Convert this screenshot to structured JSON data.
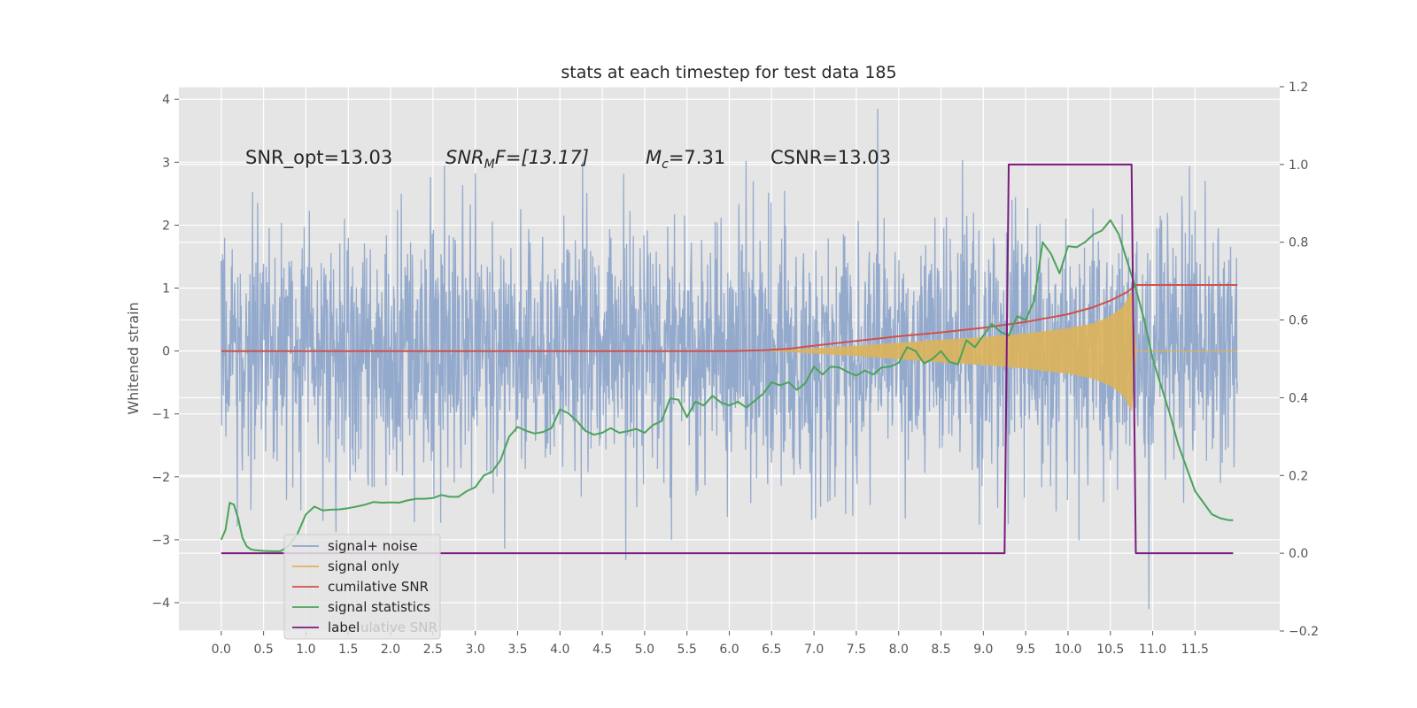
{
  "chart_data": {
    "type": "line",
    "title": "stats at each timestep for test data 185",
    "ylabel": "Whitened strain",
    "xlabel": "",
    "xlim": [
      -0.5,
      12.5
    ],
    "ylim": [
      -4.45,
      4.2
    ],
    "y2lim": [
      -0.2,
      1.2
    ],
    "grid": true,
    "legend_position": "lower-left",
    "x_ticks": [
      0.0,
      0.5,
      1.0,
      1.5,
      2.0,
      2.5,
      3.0,
      3.5,
      4.0,
      4.5,
      5.0,
      5.5,
      6.0,
      6.5,
      7.0,
      7.5,
      8.0,
      8.5,
      9.0,
      9.5,
      10.0,
      10.5,
      11.0,
      11.5
    ],
    "x_tick_labels": [
      "0.0",
      "0.5",
      "1.0",
      "1.5",
      "2.0",
      "2.5",
      "3.0",
      "3.5",
      "4.0",
      "4.5",
      "5.0",
      "5.5",
      "6.0",
      "6.5",
      "7.0",
      "7.5",
      "8.0",
      "8.5",
      "9.0",
      "9.5",
      "10.0",
      "10.5",
      "11.0",
      "11.5"
    ],
    "y_ticks": [
      -4,
      -3,
      -2,
      -1,
      0,
      1,
      2,
      3,
      4
    ],
    "y_tick_labels": [
      "−4",
      "−3",
      "−2",
      "−1",
      "0",
      "1",
      "2",
      "3",
      "4"
    ],
    "y2_ticks": [
      -0.2,
      0.0,
      0.2,
      0.4,
      0.6,
      0.8,
      1.0,
      1.2
    ],
    "y2_tick_labels": [
      "−0.2",
      "0.0",
      "0.2",
      "0.4",
      "0.6",
      "0.8",
      "1.0",
      "1.2"
    ],
    "annotations": {
      "snr_opt": "SNR_opt=13.03",
      "snr_mf_main": "SNR",
      "snr_mf_sub": "M",
      "snr_mf_rest": "F=[13.17]",
      "mc_main": "M",
      "mc_sub": "c",
      "mc_rest": "=7.31",
      "csnr": "CSNR=13.03"
    },
    "series": [
      {
        "name": "signal+ noise",
        "axis": "left",
        "color": "#8fa6cb",
        "kind": "noise",
        "x_range": [
          0.0,
          12.0
        ],
        "std": 1.0,
        "max": 3.85,
        "min": -4.1
      },
      {
        "name": "signal only",
        "axis": "left",
        "color": "#ddb25a",
        "kind": "chirp",
        "x_range": [
          6.5,
          10.8
        ],
        "envelope": {
          "x": [
            6.5,
            7.5,
            8.5,
            9.0,
            9.5,
            10.0,
            10.3,
            10.5,
            10.65,
            10.75,
            10.8
          ],
          "y": [
            0.0,
            0.08,
            0.18,
            0.22,
            0.28,
            0.36,
            0.44,
            0.55,
            0.7,
            0.95,
            0.0
          ]
        },
        "after_line": 0.0
      },
      {
        "name": "cumilative SNR",
        "axis": "right",
        "color": "#d0504b",
        "x": [
          0.0,
          6.0,
          6.4,
          6.7,
          7.0,
          7.5,
          8.0,
          8.5,
          9.0,
          9.5,
          10.0,
          10.3,
          10.5,
          10.7,
          10.8,
          12.0
        ],
        "values": [
          0.52,
          0.52,
          0.522,
          0.526,
          0.534,
          0.546,
          0.558,
          0.568,
          0.58,
          0.595,
          0.615,
          0.633,
          0.65,
          0.672,
          0.69,
          0.69
        ]
      },
      {
        "name": "signal statistics",
        "axis": "right",
        "color": "#4aa35a",
        "x": [
          0.0,
          0.05,
          0.1,
          0.15,
          0.2,
          0.25,
          0.3,
          0.35,
          0.4,
          0.5,
          0.6,
          0.7,
          0.8,
          0.9,
          1.0,
          1.05,
          1.1,
          1.15,
          1.2,
          1.3,
          1.4,
          1.5,
          1.6,
          1.7,
          1.8,
          1.9,
          2.0,
          2.1,
          2.2,
          2.3,
          2.4,
          2.5,
          2.6,
          2.7,
          2.8,
          2.9,
          3.0,
          3.1,
          3.2,
          3.3,
          3.4,
          3.5,
          3.6,
          3.7,
          3.8,
          3.9,
          4.0,
          4.1,
          4.2,
          4.3,
          4.4,
          4.5,
          4.6,
          4.7,
          4.8,
          4.9,
          5.0,
          5.1,
          5.2,
          5.3,
          5.4,
          5.5,
          5.6,
          5.7,
          5.8,
          5.9,
          6.0,
          6.1,
          6.2,
          6.3,
          6.4,
          6.5,
          6.6,
          6.7,
          6.8,
          6.9,
          7.0,
          7.1,
          7.2,
          7.3,
          7.4,
          7.5,
          7.6,
          7.7,
          7.8,
          7.9,
          8.0,
          8.1,
          8.2,
          8.3,
          8.4,
          8.5,
          8.6,
          8.7,
          8.8,
          8.9,
          9.0,
          9.1,
          9.2,
          9.3,
          9.4,
          9.5,
          9.6,
          9.7,
          9.8,
          9.9,
          10.0,
          10.1,
          10.2,
          10.3,
          10.4,
          10.5,
          10.6,
          10.7,
          10.8,
          10.9,
          11.0,
          11.1,
          11.2,
          11.3,
          11.4,
          11.5,
          11.6,
          11.7,
          11.8,
          11.9,
          11.95
        ],
        "values": [
          0.035,
          0.06,
          0.13,
          0.125,
          0.09,
          0.04,
          0.018,
          0.01,
          0.008,
          0.006,
          0.005,
          0.005,
          0.02,
          0.05,
          0.1,
          0.11,
          0.12,
          0.115,
          0.11,
          0.112,
          0.113,
          0.116,
          0.12,
          0.125,
          0.132,
          0.13,
          0.131,
          0.13,
          0.136,
          0.14,
          0.14,
          0.142,
          0.15,
          0.145,
          0.145,
          0.16,
          0.17,
          0.2,
          0.21,
          0.24,
          0.3,
          0.325,
          0.315,
          0.308,
          0.312,
          0.322,
          0.37,
          0.36,
          0.34,
          0.315,
          0.305,
          0.31,
          0.322,
          0.31,
          0.314,
          0.32,
          0.31,
          0.33,
          0.34,
          0.398,
          0.395,
          0.35,
          0.39,
          0.38,
          0.405,
          0.388,
          0.38,
          0.39,
          0.375,
          0.392,
          0.41,
          0.44,
          0.432,
          0.44,
          0.42,
          0.438,
          0.48,
          0.46,
          0.48,
          0.478,
          0.466,
          0.457,
          0.47,
          0.46,
          0.478,
          0.48,
          0.49,
          0.53,
          0.52,
          0.488,
          0.5,
          0.52,
          0.492,
          0.486,
          0.548,
          0.53,
          0.56,
          0.59,
          0.57,
          0.56,
          0.61,
          0.6,
          0.65,
          0.8,
          0.77,
          0.72,
          0.79,
          0.787,
          0.8,
          0.82,
          0.83,
          0.857,
          0.82,
          0.75,
          0.68,
          0.6,
          0.5,
          0.43,
          0.36,
          0.28,
          0.22,
          0.16,
          0.13,
          0.1,
          0.09,
          0.085,
          0.085
        ]
      },
      {
        "name": "label",
        "axis": "right",
        "color": "#7b1b7e",
        "x": [
          0.0,
          9.25,
          9.3,
          10.75,
          10.8,
          11.95
        ],
        "values": [
          0.0,
          0.0,
          1.0,
          1.0,
          0.0,
          0.0
        ]
      }
    ],
    "legend_overlap_text": "ulative SNR"
  }
}
